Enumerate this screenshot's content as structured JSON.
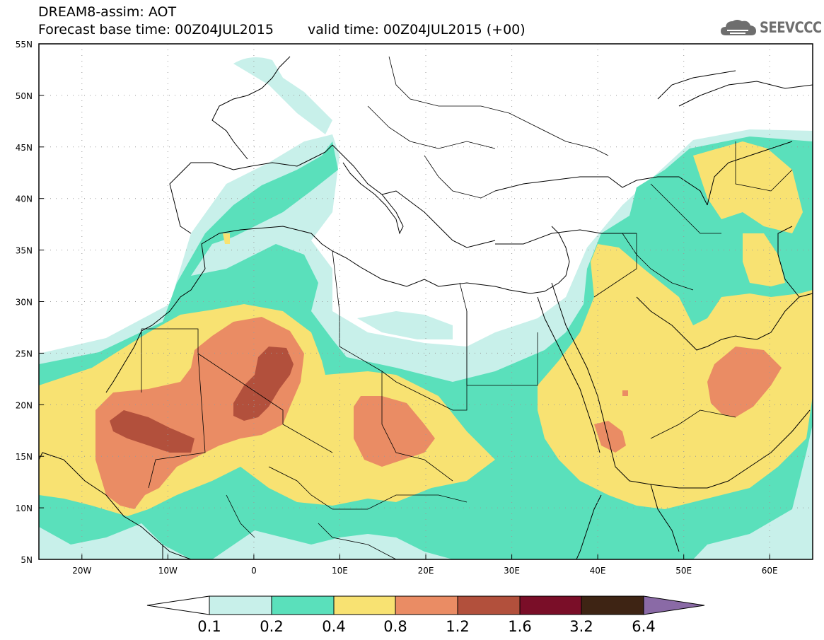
{
  "header": {
    "title_line1": "DREAM8-assim: AOT",
    "base_time": "Forecast base time: 00Z04JUL2015",
    "valid_time": "valid time: 00Z04JUL2015 (+00)",
    "logo_text": "SEEVCCC",
    "logo_icon": "cloud-icon"
  },
  "map": {
    "variable": "AOT",
    "lon_range": [
      -25,
      65
    ],
    "lat_range": [
      5,
      55
    ],
    "lat_labels": [
      "55N",
      "50N",
      "45N",
      "40N",
      "35N",
      "30N",
      "25N",
      "20N",
      "15N",
      "10N",
      "5N"
    ],
    "lon_labels": [
      "20W",
      "10W",
      "0",
      "10E",
      "20E",
      "30E",
      "40E",
      "50E",
      "60E"
    ]
  },
  "legend": {
    "labels": [
      "0.1",
      "0.2",
      "0.4",
      "0.8",
      "1.2",
      "1.6",
      "3.2",
      "6.4"
    ],
    "colors": [
      "#ffffff",
      "#c8f0ea",
      "#5ae0bb",
      "#f8e272",
      "#ea8c64",
      "#b2503c",
      "#7a0e28",
      "#3e2414",
      "#8a6aa6"
    ]
  },
  "colors": {
    "c01": "#c8f0ea",
    "c02": "#5ae0bb",
    "c04": "#f8e272",
    "c08": "#ea8c64",
    "c12": "#b2503c"
  }
}
